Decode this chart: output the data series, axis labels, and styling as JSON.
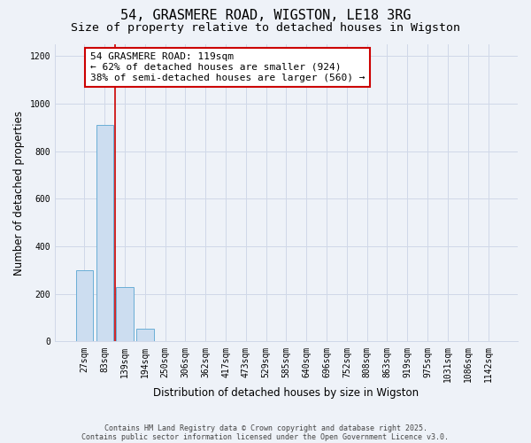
{
  "title_line1": "54, GRASMERE ROAD, WIGSTON, LE18 3RG",
  "title_line2": "Size of property relative to detached houses in Wigston",
  "xlabel": "Distribution of detached houses by size in Wigston",
  "ylabel": "Number of detached properties",
  "bar_labels": [
    "27sqm",
    "83sqm",
    "139sqm",
    "194sqm",
    "250sqm",
    "306sqm",
    "362sqm",
    "417sqm",
    "473sqm",
    "529sqm",
    "585sqm",
    "640sqm",
    "696sqm",
    "752sqm",
    "808sqm",
    "863sqm",
    "919sqm",
    "975sqm",
    "1031sqm",
    "1086sqm",
    "1142sqm"
  ],
  "bar_values": [
    300,
    910,
    230,
    55,
    0,
    0,
    0,
    0,
    2,
    0,
    0,
    0,
    0,
    0,
    0,
    0,
    0,
    0,
    0,
    0,
    0
  ],
  "bar_color": "#ccddf0",
  "bar_edge_color": "#6aaed6",
  "background_color": "#eef2f8",
  "grid_color": "#d0d8e8",
  "annotation_line1": "54 GRASMERE ROAD: 119sqm",
  "annotation_line2": "← 62% of detached houses are smaller (924)",
  "annotation_line3": "38% of semi-detached houses are larger (560) →",
  "annotation_box_color": "#ffffff",
  "annotation_box_edge": "#cc0000",
  "red_line_color": "#cc0000",
  "ylim": [
    0,
    1250
  ],
  "yticks": [
    0,
    200,
    400,
    600,
    800,
    1000,
    1200
  ],
  "footer_line1": "Contains HM Land Registry data © Crown copyright and database right 2025.",
  "footer_line2": "Contains public sector information licensed under the Open Government Licence v3.0.",
  "title_fontsize": 11,
  "subtitle_fontsize": 9.5,
  "axis_label_fontsize": 8.5,
  "tick_fontsize": 7,
  "annotation_fontsize": 8,
  "footer_fontsize": 6
}
